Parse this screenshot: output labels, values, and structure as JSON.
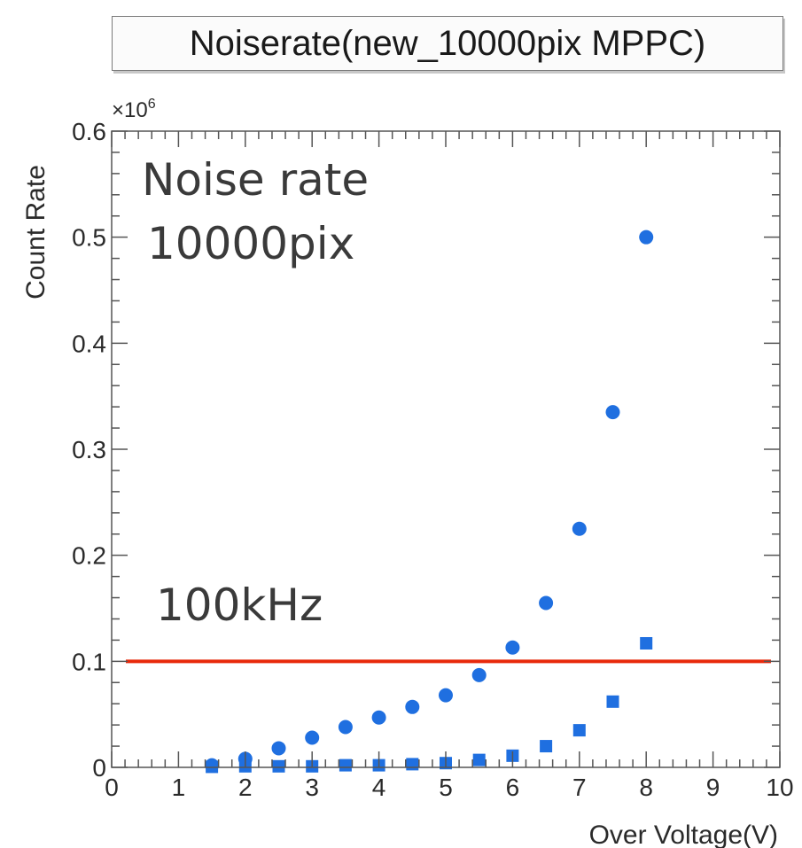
{
  "chart_data": {
    "type": "scatter",
    "title": "Noiserate(new_10000pix MPPC)",
    "xlabel": "Over Voltage(V)",
    "ylabel": "Count Rate",
    "y_exponent_label": "×10",
    "y_exponent_power": "6",
    "xlim": [
      0,
      10
    ],
    "ylim": [
      0,
      0.6
    ],
    "x_ticks": [
      0,
      1,
      2,
      3,
      4,
      5,
      6,
      7,
      8,
      9,
      10
    ],
    "y_ticks": [
      0,
      0.1,
      0.2,
      0.3,
      0.4,
      0.5,
      0.6
    ],
    "x_tick_labels": [
      "0",
      "1",
      "2",
      "3",
      "4",
      "5",
      "6",
      "7",
      "8",
      "9",
      "10"
    ],
    "y_tick_labels": [
      "0",
      "0.1",
      "0.2",
      "0.3",
      "0.4",
      "0.5",
      "0.6"
    ],
    "grid": false,
    "series": [
      {
        "marker": "circle",
        "color": "#1f6fe0",
        "x": [
          1.5,
          2.0,
          2.5,
          3.0,
          3.5,
          4.0,
          4.5,
          5.0,
          5.5,
          6.0,
          6.5,
          7.0,
          7.5,
          8.0
        ],
        "y": [
          0.002,
          0.008,
          0.018,
          0.028,
          0.038,
          0.047,
          0.057,
          0.068,
          0.087,
          0.113,
          0.155,
          0.225,
          0.335,
          0.5
        ]
      },
      {
        "marker": "square",
        "color": "#1f6fe0",
        "x": [
          1.5,
          2.0,
          2.5,
          3.0,
          3.5,
          4.0,
          4.5,
          5.0,
          5.5,
          6.0,
          6.5,
          7.0,
          7.5,
          8.0
        ],
        "y": [
          0.0005,
          0.001,
          0.001,
          0.001,
          0.002,
          0.002,
          0.003,
          0.004,
          0.007,
          0.011,
          0.02,
          0.035,
          0.062,
          0.117
        ]
      }
    ],
    "reference_line": {
      "y": 0.1,
      "color": "#e8290b",
      "label": "100kHz"
    },
    "annotations": {
      "line1": "Noise rate",
      "line2": "10000pix"
    }
  }
}
